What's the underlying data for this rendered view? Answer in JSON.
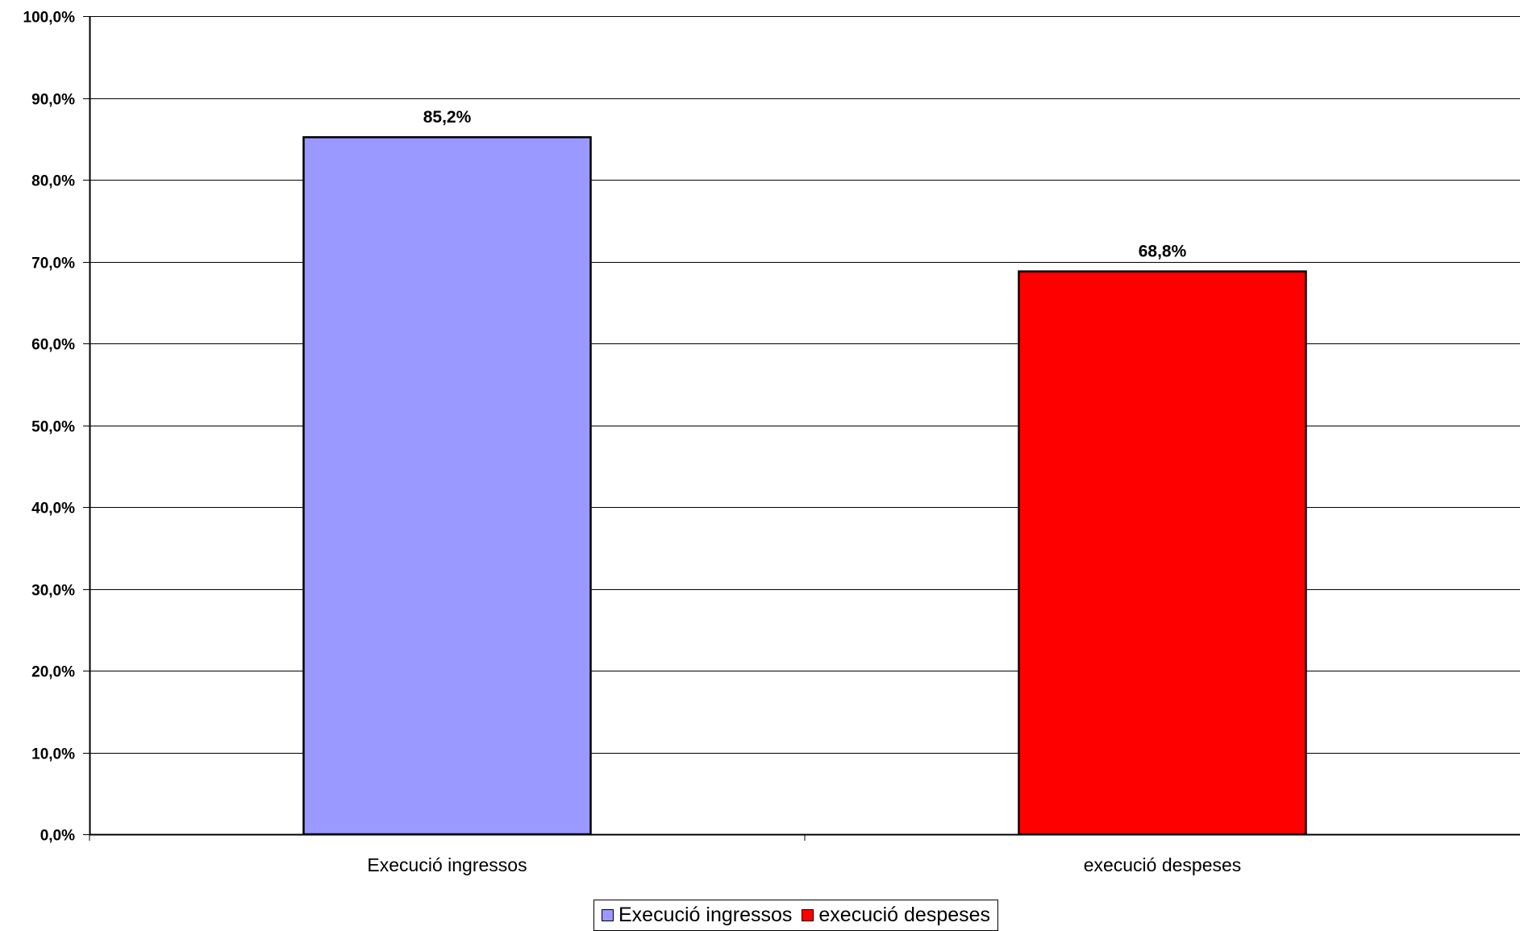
{
  "chart_data": {
    "type": "bar",
    "categories": [
      "Execució ingressos",
      "execució despeses"
    ],
    "values": [
      85.2,
      68.8
    ],
    "value_labels": [
      "85,2%",
      "68,8%"
    ],
    "colors": [
      "#9999ff",
      "#ff0000"
    ],
    "ylim": [
      0,
      100
    ],
    "yticks": [
      "0,0%",
      "10,0%",
      "20,0%",
      "30,0%",
      "40,0%",
      "50,0%",
      "60,0%",
      "70,0%",
      "80,0%",
      "90,0%",
      "100,0%"
    ],
    "grid": true,
    "legend_position": "bottom",
    "legend": [
      {
        "label": "Execució ingressos",
        "color": "#9999ff"
      },
      {
        "label": "execució despeses",
        "color": "#ff0000"
      }
    ]
  }
}
